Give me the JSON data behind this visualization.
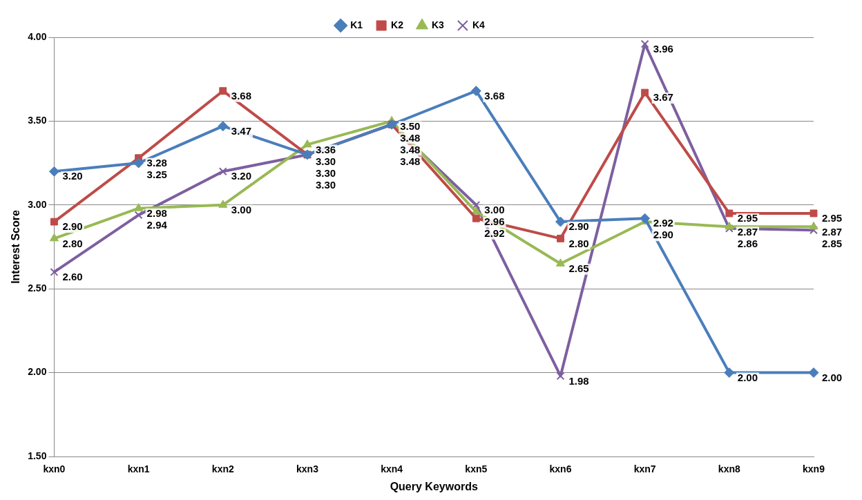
{
  "chart_data": {
    "type": "line",
    "xlabel": "Query Keywords",
    "ylabel": "Interest Score",
    "categories": [
      "kxn0",
      "kxn1",
      "kxn2",
      "kxn3",
      "kxn4",
      "kxn5",
      "kxn6",
      "kxn7",
      "kxn8",
      "kxn9"
    ],
    "series": [
      {
        "name": "K1",
        "color": "#4a7ebb",
        "marker": "diamond",
        "values": [
          3.2,
          3.25,
          3.47,
          3.3,
          3.48,
          3.68,
          2.9,
          2.92,
          2.0,
          2.0
        ],
        "value_labels": [
          "3.20",
          "3.25",
          "3.47",
          "3.30",
          "3.48",
          "3.68",
          "2.90",
          "2.92",
          "2.00",
          "2.00"
        ]
      },
      {
        "name": "K2",
        "color": "#be4b48",
        "marker": "square",
        "values": [
          2.9,
          3.28,
          3.68,
          3.3,
          3.48,
          2.92,
          2.8,
          3.67,
          2.95,
          2.95
        ],
        "value_labels": [
          "2.90",
          "3.28",
          "3.68",
          "3.30",
          "3.48",
          "2.92",
          "2.80",
          "3.67",
          "2.95",
          "2.95"
        ]
      },
      {
        "name": "K3",
        "color": "#98b954",
        "marker": "triangle",
        "values": [
          2.8,
          2.98,
          3.0,
          3.36,
          3.5,
          2.96,
          2.65,
          2.9,
          2.87,
          2.87
        ],
        "value_labels": [
          "2.80",
          "2.98",
          "3.00",
          "3.36",
          "3.50",
          "2.96",
          "2.65",
          "2.90",
          "2.87",
          "2.87"
        ]
      },
      {
        "name": "K4",
        "color": "#7d5fa0",
        "marker": "cross",
        "values": [
          2.6,
          2.94,
          3.2,
          3.3,
          3.48,
          3.0,
          1.98,
          3.96,
          2.86,
          2.85
        ],
        "value_labels": [
          "2.60",
          "2.94",
          "3.20",
          "3.30",
          "3.48",
          "3.00",
          "1.98",
          "3.96",
          "2.86",
          "2.85"
        ]
      }
    ],
    "ylim": [
      1.5,
      4.0
    ],
    "yticks": [
      {
        "value": 1.5,
        "label": "1.50"
      },
      {
        "value": 2.0,
        "label": "2.00"
      },
      {
        "value": 2.5,
        "label": "2.50"
      },
      {
        "value": 3.0,
        "label": "3.00"
      },
      {
        "value": 3.5,
        "label": "3.50"
      },
      {
        "value": 4.0,
        "label": "4.00"
      }
    ],
    "grid": "y",
    "legend": "top",
    "line_style": "solid"
  }
}
